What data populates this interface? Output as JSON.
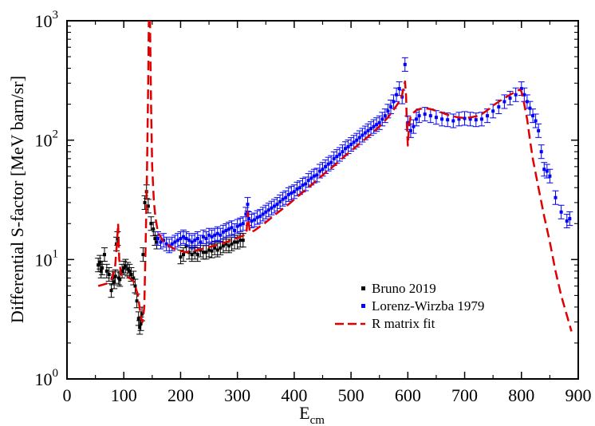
{
  "chart_data": {
    "type": "scatter",
    "title": "",
    "xlabel": "E",
    "xlabel_sub": "cm",
    "ylabel": "Differential S-factor [MeV barn/sr]",
    "xlim": [
      0,
      900
    ],
    "ylim": [
      1,
      1000
    ],
    "y_scale": "log",
    "grid": false,
    "legend_position": "bottom-center",
    "x_ticks": [
      "0",
      "100",
      "200",
      "300",
      "400",
      "500",
      "600",
      "700",
      "800",
      "900"
    ],
    "y_ticks": [
      {
        "base": "10",
        "exp": "0"
      },
      {
        "base": "10",
        "exp": "1"
      },
      {
        "base": "10",
        "exp": "2"
      },
      {
        "base": "10",
        "exp": "3"
      }
    ],
    "series": [
      {
        "name": "Bruno 2019",
        "kind": "points",
        "color": "#000000",
        "x": [
          55,
          58,
          60,
          62,
          66,
          70,
          74,
          78,
          80,
          83,
          85,
          87,
          89,
          91,
          93,
          97,
          100,
          103,
          107,
          110,
          113,
          117,
          120,
          123,
          126,
          128,
          130,
          132,
          134,
          137,
          140,
          143,
          148,
          152,
          155,
          158,
          200,
          205,
          210,
          215,
          220,
          225,
          230,
          235,
          240,
          245,
          250,
          255,
          260,
          265,
          270,
          275,
          280,
          285,
          290,
          295,
          300,
          305,
          310
        ],
        "y": [
          9.0,
          9.5,
          8.0,
          8.5,
          11.0,
          8.0,
          7.5,
          5.5,
          7.0,
          6.5,
          7.2,
          13.5,
          15.0,
          7.0,
          6.8,
          8.0,
          8.5,
          8.8,
          8.3,
          8.0,
          7.5,
          7.0,
          6.0,
          4.5,
          3.2,
          2.7,
          2.9,
          3.5,
          11.0,
          30.0,
          37.0,
          28.0,
          20.0,
          18.0,
          15.0,
          14.0,
          10.5,
          11.0,
          13.0,
          11.5,
          11.0,
          11.5,
          11.0,
          12.0,
          11.5,
          11.5,
          12.0,
          11.8,
          12.5,
          12.0,
          12.5,
          13.0,
          13.5,
          13.0,
          13.5,
          14.0,
          14.0,
          14.5,
          14.5
        ],
        "rel_err": 0.14
      },
      {
        "name": "Lorenz-Wirzba 1979",
        "kind": "points",
        "color": "#0000ff",
        "x": [
          160,
          165,
          170,
          175,
          180,
          185,
          190,
          195,
          200,
          205,
          210,
          215,
          220,
          225,
          230,
          235,
          240,
          245,
          250,
          255,
          260,
          265,
          270,
          275,
          280,
          285,
          290,
          295,
          300,
          305,
          310,
          315,
          318,
          320,
          325,
          330,
          335,
          340,
          345,
          350,
          355,
          360,
          365,
          370,
          375,
          380,
          385,
          390,
          395,
          400,
          405,
          410,
          415,
          420,
          425,
          430,
          435,
          440,
          445,
          450,
          455,
          460,
          465,
          470,
          475,
          480,
          485,
          490,
          495,
          500,
          505,
          510,
          515,
          520,
          525,
          530,
          535,
          540,
          545,
          550,
          555,
          560,
          565,
          570,
          575,
          580,
          585,
          590,
          595,
          600,
          605,
          610,
          615,
          620,
          630,
          640,
          650,
          660,
          670,
          680,
          690,
          700,
          710,
          720,
          730,
          740,
          750,
          760,
          770,
          780,
          790,
          800,
          805,
          810,
          815,
          820,
          825,
          830,
          835,
          840,
          845,
          850,
          860,
          870,
          880,
          885
        ],
        "y": [
          15.0,
          14.0,
          14.5,
          13.5,
          13.0,
          13.5,
          14.0,
          14.5,
          15.0,
          15.5,
          15.0,
          14.5,
          14.0,
          14.5,
          15.0,
          14.0,
          15.5,
          15.0,
          16.0,
          15.5,
          16.0,
          16.5,
          16.0,
          17.0,
          17.5,
          18.0,
          18.5,
          17.5,
          19.0,
          19.5,
          20.0,
          24.0,
          29.0,
          22.0,
          21.0,
          21.5,
          22.5,
          23.0,
          24.0,
          25.0,
          26.0,
          27.0,
          28.0,
          29.0,
          30.5,
          32.0,
          33.0,
          35.0,
          36.0,
          37.0,
          39.0,
          40.0,
          42.0,
          43.0,
          46.0,
          48.0,
          50.0,
          51.0,
          55.0,
          57.0,
          60.0,
          63.0,
          65.0,
          70.0,
          73.0,
          76.0,
          80.0,
          85.0,
          88.0,
          92.0,
          96.0,
          100.0,
          105.0,
          110.0,
          115.0,
          120.0,
          125.0,
          130.0,
          135.0,
          140.0,
          150.0,
          160.0,
          175.0,
          190.0,
          210.0,
          240.0,
          270.0,
          230.0,
          430.0,
          140.0,
          120.0,
          130.0,
          150.0,
          160.0,
          165.0,
          160.0,
          155.0,
          150.0,
          148.0,
          145.0,
          150.0,
          152.0,
          150.0,
          148.0,
          150.0,
          160.0,
          175.0,
          190.0,
          210.0,
          225.0,
          240.0,
          270.0,
          240.0,
          210.0,
          185.0,
          160.0,
          145.0,
          120.0,
          80.0,
          57.0,
          55.0,
          50.0,
          33.0,
          25.0,
          21.0,
          22.0
        ],
        "rel_err": 0.14
      },
      {
        "name": "R matrix fit",
        "kind": "dashed-line",
        "color": "#e00000",
        "x": [
          55,
          70,
          80,
          85,
          88,
          90,
          92,
          95,
          100,
          110,
          118,
          125,
          130,
          133,
          136,
          139,
          141,
          143,
          144,
          146,
          148,
          150,
          153,
          156,
          160,
          170,
          180,
          190,
          200,
          210,
          230,
          250,
          270,
          290,
          305,
          312,
          316,
          318,
          322,
          330,
          350,
          370,
          390,
          410,
          430,
          450,
          470,
          490,
          510,
          530,
          550,
          565,
          575,
          585,
          590,
          593,
          595,
          597,
          598,
          600,
          602,
          605,
          610,
          615,
          620,
          630,
          640,
          650,
          660,
          670,
          680,
          690,
          700,
          710,
          720,
          730,
          740,
          750,
          760,
          770,
          780,
          790,
          797,
          800,
          805,
          810,
          815,
          820,
          830,
          840,
          850,
          860,
          870,
          880,
          888
        ],
        "y": [
          6.0,
          6.3,
          7.0,
          9.0,
          14.0,
          20.0,
          10.0,
          7.5,
          7.2,
          7.0,
          6.5,
          5.0,
          3.3,
          3.0,
          4.0,
          18.0,
          60.0,
          300.0,
          1000.0,
          1100.0,
          200.0,
          60.0,
          30.0,
          22.0,
          17.0,
          14.0,
          13.0,
          12.2,
          11.8,
          11.5,
          12.0,
          12.7,
          13.5,
          14.5,
          15.5,
          16.0,
          16.5,
          25.0,
          16.8,
          17.5,
          20.5,
          24.5,
          29.0,
          35.0,
          42.0,
          51.0,
          61.0,
          74.0,
          89.0,
          107.0,
          130.0,
          155.0,
          180.0,
          210.0,
          240.0,
          280.0,
          310.0,
          230.0,
          150.0,
          90.0,
          130.0,
          160.0,
          170.0,
          178.0,
          182.0,
          185.0,
          182.0,
          176.0,
          170.0,
          163.0,
          158.0,
          155.0,
          153.0,
          155.0,
          158.0,
          165.0,
          178.0,
          195.0,
          210.0,
          225.0,
          240.0,
          255.0,
          265.0,
          255.0,
          200.0,
          150.0,
          100.0,
          70.0,
          40.0,
          23.0,
          14.0,
          8.0,
          5.0,
          3.4,
          2.5
        ]
      }
    ]
  }
}
